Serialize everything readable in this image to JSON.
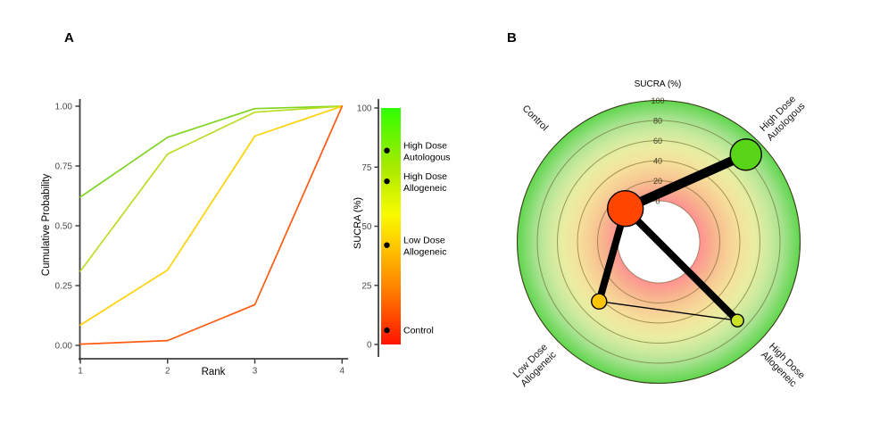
{
  "figure": {
    "panels": [
      {
        "label": "A"
      },
      {
        "label": "B"
      }
    ]
  },
  "chart_data": [
    {
      "panel": "A",
      "type": "line",
      "title": "",
      "xlabel": "Rank",
      "ylabel": "Cumulative Probability",
      "x": [
        1,
        2,
        3,
        4
      ],
      "xtick_labels": [
        "1",
        "2",
        "3",
        "4"
      ],
      "yticks": [
        0,
        0.25,
        0.5,
        0.75,
        1
      ],
      "ytick_labels": [
        "0.00",
        "0.25",
        "0.50",
        "0.75",
        "1.00"
      ],
      "xlim": [
        1,
        4
      ],
      "ylim": [
        0,
        1
      ],
      "grid": false,
      "legend_position": "right-colorbar",
      "series": [
        {
          "name": "High Dose Autologous",
          "label_lines": [
            "High Dose",
            "Autologous"
          ],
          "sucra": 82,
          "color": "#7fd41f",
          "values": [
            0.62,
            0.87,
            0.99,
            1.0
          ]
        },
        {
          "name": "High Dose Allogeneic",
          "label_lines": [
            "High Dose",
            "Allogeneic"
          ],
          "sucra": 69,
          "color": "#bade22",
          "values": [
            0.31,
            0.8,
            0.975,
            1.0
          ]
        },
        {
          "name": "Low Dose Allogeneic",
          "label_lines": [
            "Low Dose",
            "Allogeneic"
          ],
          "sucra": 42,
          "color": "#ffd200",
          "values": [
            0.085,
            0.315,
            0.875,
            1.0
          ]
        },
        {
          "name": "Control",
          "label_lines": [
            "Control"
          ],
          "sucra": 6,
          "color": "#ff5a10",
          "values": [
            0.005,
            0.02,
            0.17,
            1.0
          ]
        }
      ],
      "colorbar": {
        "label": "SUCRA (%)",
        "ticks": [
          0,
          25,
          50,
          75,
          100
        ],
        "tick_labels": [
          "0",
          "25",
          "50",
          "75",
          "100"
        ],
        "gradient_stops": [
          {
            "offset": 0,
            "color": "#ff1400"
          },
          {
            "offset": 0.25,
            "color": "#ff8700"
          },
          {
            "offset": 0.45,
            "color": "#ffd500"
          },
          {
            "offset": 0.55,
            "color": "#f8fb00"
          },
          {
            "offset": 0.75,
            "color": "#a8ea00"
          },
          {
            "offset": 1,
            "color": "#30ff00"
          }
        ]
      }
    },
    {
      "panel": "B",
      "type": "radial",
      "title": "SUCRA (%)",
      "axis_range": [
        0,
        100
      ],
      "ring_values": [
        0,
        20,
        40,
        60,
        80,
        100
      ],
      "ring_labels": [
        "0",
        "20",
        "40",
        "60",
        "80",
        "100"
      ],
      "background_gradient": [
        {
          "offset": 0.29,
          "color": "#ff9292"
        },
        {
          "offset": 0.38,
          "color": "#f8af8e"
        },
        {
          "offset": 0.48,
          "color": "#f7cd95"
        },
        {
          "offset": 0.58,
          "color": "#f5e29c"
        },
        {
          "offset": 0.68,
          "color": "#e9eda2"
        },
        {
          "offset": 0.78,
          "color": "#cdea9e"
        },
        {
          "offset": 0.88,
          "color": "#a5e28e"
        },
        {
          "offset": 1,
          "color": "#5fd54d"
        }
      ],
      "nodes": [
        {
          "name": "Control",
          "label_lines": [
            "Control"
          ],
          "angle_deg": 135,
          "sucra": 6,
          "node_radius": 20,
          "color": "#ff4500",
          "label_rotation": 45
        },
        {
          "name": "High Dose Autologous",
          "label_lines": [
            "High Dose",
            "Autologous"
          ],
          "angle_deg": 45,
          "sucra": 82,
          "node_radius": 17.5,
          "color": "#58d517",
          "label_rotation": -45
        },
        {
          "name": "Low Dose Allogeneic",
          "label_lines": [
            "Low Dose",
            "Allogeneic"
          ],
          "angle_deg": 225,
          "sucra": 43,
          "node_radius": 8.5,
          "color": "#ffc404",
          "label_rotation": -45
        },
        {
          "name": "High Dose Allogeneic",
          "label_lines": [
            "High Dose",
            "Allogeneic"
          ],
          "angle_deg": 315,
          "sucra": 70,
          "node_radius": 7,
          "color": "#cbe326",
          "label_rotation": 45
        }
      ],
      "edges": [
        {
          "from": "Control",
          "to": "High Dose Autologous",
          "width": 10.5
        },
        {
          "from": "Control",
          "to": "Low Dose Allogeneic",
          "width": 8
        },
        {
          "from": "Control",
          "to": "High Dose Allogeneic",
          "width": 8
        },
        {
          "from": "Low Dose Allogeneic",
          "to": "High Dose Allogeneic",
          "width": 1.4
        }
      ]
    }
  ]
}
